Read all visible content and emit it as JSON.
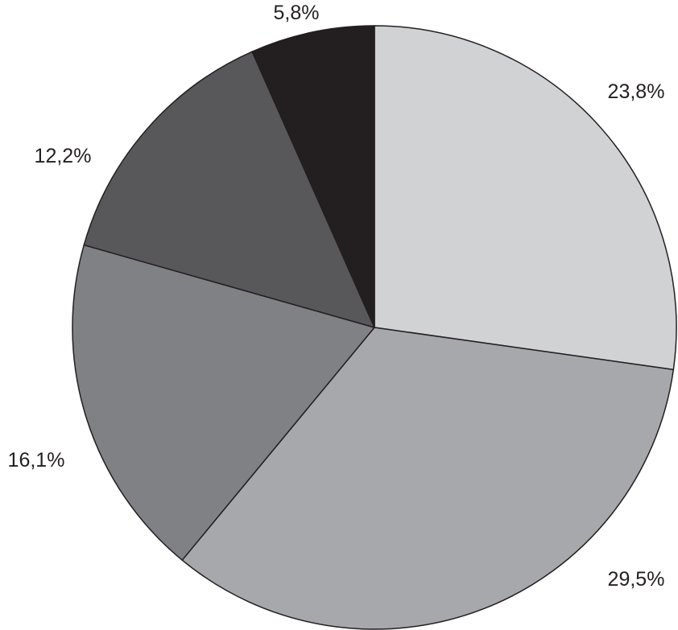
{
  "chart_data": {
    "type": "pie",
    "title": "",
    "start": "top",
    "direction": "clockwise",
    "slices": [
      {
        "label": "23,8%",
        "value": 23.8,
        "color": "#d1d2d4"
      },
      {
        "label": "29,5%",
        "value": 29.5,
        "color": "#a7a8ab"
      },
      {
        "label": "16,1%",
        "value": 16.1,
        "color": "#808184"
      },
      {
        "label": "12,2%",
        "value": 12.2,
        "color": "#58585a"
      },
      {
        "label": "5,8%",
        "value": 5.8,
        "color": "#231f20"
      }
    ]
  }
}
